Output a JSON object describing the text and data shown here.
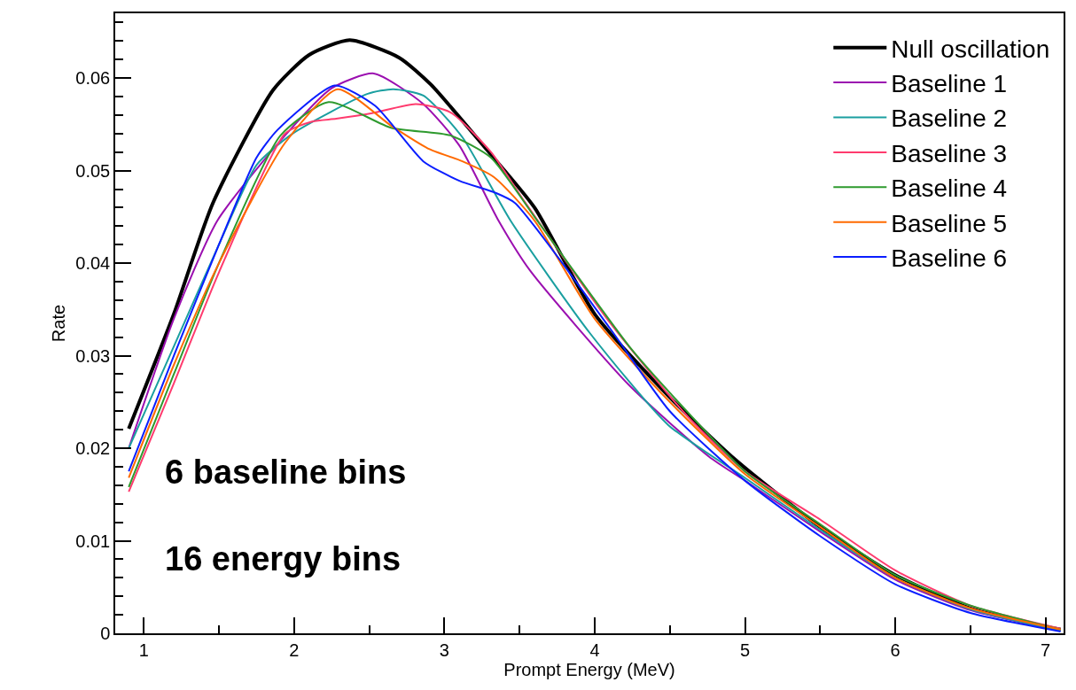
{
  "chart_data": {
    "type": "line",
    "xlabel": "Prompt Energy (MeV)",
    "ylabel": "Rate",
    "xlim": [
      0.81,
      7.12
    ],
    "xticks": [
      1,
      2,
      3,
      4,
      5,
      6,
      7
    ],
    "ylim": [
      0,
      0.067
    ],
    "yticks": [
      0,
      0.01,
      0.02,
      0.03,
      0.04,
      0.05,
      0.06
    ],
    "legend": "top right",
    "marker": "none",
    "line_style": "solid",
    "annotations": [
      "6 baseline bins",
      "16 energy bins"
    ],
    "series": [
      {
        "name": "Null oscillation",
        "color": "#000000",
        "x": [
          0.9,
          1.2,
          1.46,
          1.86,
          2.1,
          2.37,
          2.7,
          2.91,
          3.28,
          3.6,
          4.0,
          4.5,
          4.94,
          5.5,
          6.0,
          6.5,
          7.1
        ],
        "values": [
          0.0221,
          0.0345,
          0.0465,
          0.0587,
          0.0625,
          0.0641,
          0.0622,
          0.0593,
          0.0523,
          0.046,
          0.0345,
          0.0255,
          0.0187,
          0.0115,
          0.0063,
          0.0027,
          0.0004
        ]
      },
      {
        "name": "Baseline 1",
        "color": "#9b0fb0",
        "x": [
          0.9,
          1.2,
          1.49,
          1.94,
          2.25,
          2.53,
          2.86,
          3.1,
          3.36,
          3.57,
          4.23,
          4.76,
          5.0,
          5.5,
          6.0,
          6.5,
          7.1
        ],
        "values": [
          0.02,
          0.034,
          0.0446,
          0.0538,
          0.0589,
          0.0605,
          0.0572,
          0.0527,
          0.0446,
          0.0392,
          0.0268,
          0.0191,
          0.0165,
          0.011,
          0.0058,
          0.0025,
          0.0003
        ]
      },
      {
        "name": "Baseline 2",
        "color": "#1a9fa0",
        "x": [
          0.9,
          1.2,
          1.5,
          1.75,
          1.99,
          2.49,
          2.66,
          2.86,
          3.12,
          3.44,
          3.97,
          4.49,
          5.0,
          5.5,
          6.0,
          6.5,
          7.1
        ],
        "values": [
          0.02,
          0.031,
          0.042,
          0.0506,
          0.054,
          0.0583,
          0.0588,
          0.0581,
          0.0536,
          0.0446,
          0.0324,
          0.0225,
          0.0168,
          0.0112,
          0.006,
          0.0026,
          0.0003
        ]
      },
      {
        "name": "Baseline 3",
        "color": "#ff3b6e",
        "x": [
          0.9,
          1.2,
          1.5,
          1.94,
          2.12,
          2.28,
          2.52,
          2.81,
          3.04,
          3.31,
          3.54,
          4.1,
          4.62,
          5.0,
          5.5,
          6.0,
          6.5,
          7.1
        ],
        "values": [
          0.0153,
          0.027,
          0.039,
          0.054,
          0.0553,
          0.0556,
          0.0562,
          0.0572,
          0.0563,
          0.052,
          0.0465,
          0.0336,
          0.0234,
          0.0175,
          0.0123,
          0.0068,
          0.003,
          0.0005
        ]
      },
      {
        "name": "Baseline 4",
        "color": "#2e9a2e",
        "x": [
          0.9,
          1.2,
          1.5,
          1.91,
          2.23,
          2.65,
          3.04,
          3.31,
          3.6,
          4.23,
          4.5,
          5.0,
          5.5,
          6.0,
          6.5,
          7.1
        ],
        "values": [
          0.0158,
          0.028,
          0.04,
          0.0538,
          0.0574,
          0.0546,
          0.0538,
          0.0514,
          0.045,
          0.031,
          0.026,
          0.0175,
          0.0118,
          0.0063,
          0.003,
          0.0004
        ]
      },
      {
        "name": "Baseline 5",
        "color": "#ff6a00",
        "x": [
          0.9,
          1.2,
          1.5,
          1.94,
          2.29,
          2.65,
          2.89,
          3.12,
          3.33,
          3.6,
          4.0,
          4.5,
          5.0,
          5.5,
          6.0,
          6.5,
          7.1
        ],
        "values": [
          0.0168,
          0.029,
          0.04,
          0.053,
          0.0588,
          0.0548,
          0.0524,
          0.051,
          0.0493,
          0.0446,
          0.034,
          0.025,
          0.0172,
          0.0115,
          0.006,
          0.0027,
          0.0004
        ]
      },
      {
        "name": "Baseline 6",
        "color": "#0a1eff",
        "x": [
          0.9,
          1.2,
          1.5,
          1.75,
          1.89,
          2.27,
          2.54,
          2.86,
          3.1,
          3.34,
          3.47,
          4.1,
          4.5,
          5.0,
          5.5,
          6.0,
          6.5,
          7.1
        ],
        "values": [
          0.0175,
          0.03,
          0.042,
          0.0514,
          0.0544,
          0.0592,
          0.057,
          0.051,
          0.0489,
          0.0476,
          0.0465,
          0.033,
          0.024,
          0.0165,
          0.0105,
          0.0053,
          0.0022,
          0.0002
        ]
      }
    ]
  }
}
